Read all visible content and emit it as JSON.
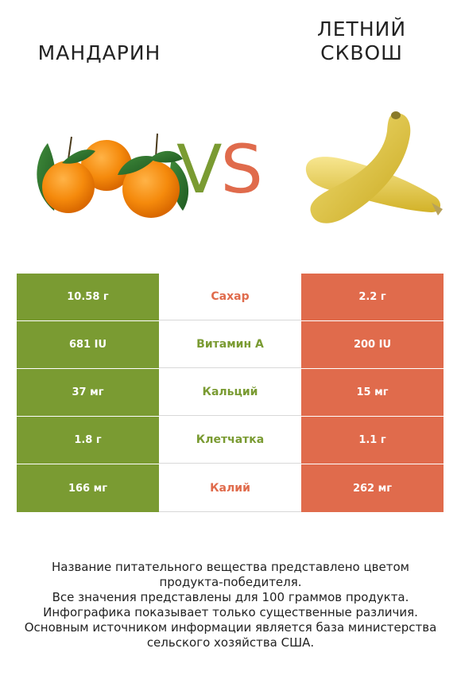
{
  "left_product": {
    "name": "МАНДАРИН"
  },
  "right_product": {
    "name_line1": "ЛЕТНИЙ",
    "name_line2": "СКВОШ"
  },
  "vs": {
    "v": "V",
    "s": "S"
  },
  "colors": {
    "left": "#7a9b32",
    "right": "#e06b4c"
  },
  "rows": [
    {
      "left": "10.58 г",
      "nutrient": "Сахар",
      "winner": "right",
      "right": "2.2 г"
    },
    {
      "left": "681 IU",
      "nutrient": "Витамин A",
      "winner": "left",
      "right": "200 IU"
    },
    {
      "left": "37 мг",
      "nutrient": "Кальций",
      "winner": "left",
      "right": "15 мг"
    },
    {
      "left": "1.8 г",
      "nutrient": "Клетчатка",
      "winner": "left",
      "right": "1.1 г"
    },
    {
      "left": "166 мг",
      "nutrient": "Калий",
      "winner": "right",
      "right": "262 мг"
    }
  ],
  "footer": {
    "line1": "Название питательного вещества представлено цветом",
    "line2": "продукта-победителя.",
    "line3": "Все значения представлены для 100 граммов продукта.",
    "line4": "Инфографика показывает только существенные различия.",
    "line5": "Основным источником информации является база министерства",
    "line6": "сельского хозяйства США."
  }
}
